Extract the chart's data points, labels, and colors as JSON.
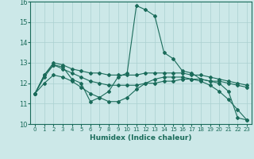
{
  "xlabel": "Humidex (Indice chaleur)",
  "background_color": "#cce8e8",
  "grid_color": "#aad0d0",
  "line_color": "#1a6b5a",
  "xlim": [
    -0.5,
    23.5
  ],
  "ylim": [
    10,
    16
  ],
  "yticks": [
    10,
    11,
    12,
    13,
    14,
    15,
    16
  ],
  "xticks": [
    0,
    1,
    2,
    3,
    4,
    5,
    6,
    7,
    8,
    9,
    10,
    11,
    12,
    13,
    14,
    15,
    16,
    17,
    18,
    19,
    20,
    21,
    22,
    23
  ],
  "series": [
    [
      11.5,
      12.4,
      12.9,
      12.8,
      12.2,
      12.0,
      11.1,
      11.3,
      11.6,
      12.3,
      12.5,
      15.8,
      15.6,
      15.3,
      13.5,
      13.2,
      12.6,
      12.5,
      12.2,
      12.1,
      12.0,
      11.6,
      10.3,
      10.2
    ],
    [
      11.5,
      12.4,
      13.0,
      12.9,
      12.7,
      12.6,
      12.5,
      12.5,
      12.4,
      12.4,
      12.4,
      12.4,
      12.5,
      12.5,
      12.5,
      12.5,
      12.5,
      12.4,
      12.4,
      12.3,
      12.2,
      12.1,
      12.0,
      11.9
    ],
    [
      11.5,
      12.3,
      12.9,
      12.7,
      12.5,
      12.3,
      12.1,
      12.0,
      11.9,
      11.9,
      11.9,
      11.9,
      12.0,
      12.0,
      12.1,
      12.1,
      12.2,
      12.2,
      12.2,
      12.1,
      12.1,
      12.0,
      11.9,
      11.8
    ],
    [
      11.5,
      12.0,
      12.4,
      12.3,
      12.1,
      11.8,
      11.5,
      11.3,
      11.1,
      11.1,
      11.3,
      11.7,
      12.0,
      12.2,
      12.3,
      12.3,
      12.3,
      12.2,
      12.1,
      11.9,
      11.6,
      11.2,
      10.7,
      10.2
    ]
  ]
}
